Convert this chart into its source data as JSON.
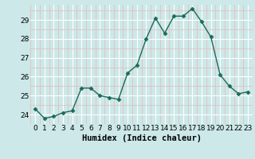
{
  "x": [
    0,
    1,
    2,
    3,
    4,
    5,
    6,
    7,
    8,
    9,
    10,
    11,
    12,
    13,
    14,
    15,
    16,
    17,
    18,
    19,
    20,
    21,
    22,
    23
  ],
  "y": [
    24.3,
    23.8,
    23.9,
    24.1,
    24.2,
    25.4,
    25.4,
    25.0,
    24.9,
    24.8,
    26.2,
    26.6,
    28.0,
    29.1,
    28.3,
    29.2,
    29.2,
    29.6,
    28.9,
    28.1,
    26.1,
    25.5,
    25.1,
    25.2
  ],
  "line_color": "#1a6b5a",
  "marker": "D",
  "markersize": 2.5,
  "linewidth": 1.0,
  "xlabel": "Humidex (Indice chaleur)",
  "xlim": [
    -0.5,
    23.5
  ],
  "ylim": [
    23.5,
    29.8
  ],
  "yticks": [
    24,
    25,
    26,
    27,
    28,
    29
  ],
  "xticks": [
    0,
    1,
    2,
    3,
    4,
    5,
    6,
    7,
    8,
    9,
    10,
    11,
    12,
    13,
    14,
    15,
    16,
    17,
    18,
    19,
    20,
    21,
    22,
    23
  ],
  "bg_color": "#cce8e8",
  "grid_color_major": "#ffffff",
  "grid_color_minor": "#e8b8b8",
  "xlabel_fontsize": 7.5,
  "tick_fontsize": 6.5
}
